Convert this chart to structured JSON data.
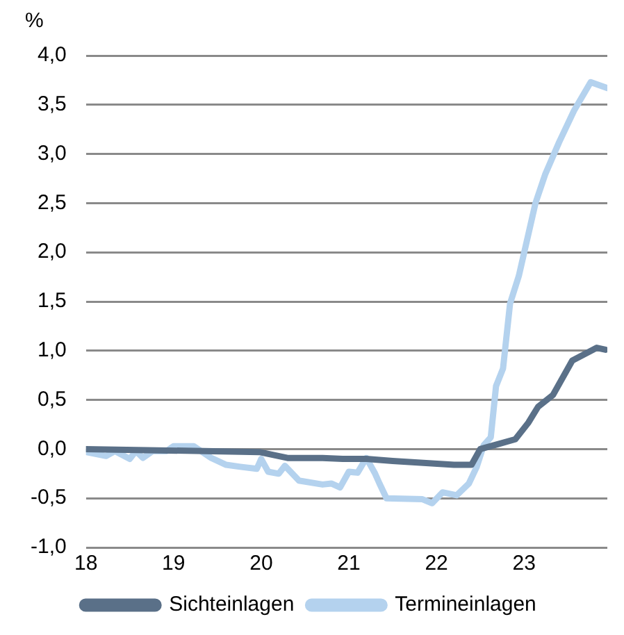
{
  "chart_data": {
    "type": "line",
    "ylabel": "%",
    "xlim": [
      18,
      23.95
    ],
    "xticks": [
      18,
      19,
      20,
      21,
      22,
      23
    ],
    "ylim": [
      -1,
      4
    ],
    "yticks": [
      {
        "value": -1,
        "label": "-1,0"
      },
      {
        "value": -0.5,
        "label": "-0,5"
      },
      {
        "value": 0,
        "label": "0,0"
      },
      {
        "value": 0.5,
        "label": "0,5"
      },
      {
        "value": 1,
        "label": "1,0"
      },
      {
        "value": 1.5,
        "label": "1,5"
      },
      {
        "value": 2,
        "label": "2,0"
      },
      {
        "value": 2.5,
        "label": "2,5"
      },
      {
        "value": 3,
        "label": "3,0"
      },
      {
        "value": 3.5,
        "label": "3,5"
      },
      {
        "value": 4,
        "label": "4,0"
      }
    ],
    "grid": "y",
    "legend": "bottom",
    "marker": "none",
    "line_style": "solid",
    "series": [
      {
        "name": "Sichteinlagen",
        "color": "#5a7088",
        "x": [
          18,
          19.98,
          20.3,
          20.7,
          20.93,
          21.2,
          21.5,
          22.2,
          22.4,
          22.5,
          22.7,
          22.9,
          23.05,
          23.16,
          23.33,
          23.55,
          23.83,
          23.93
        ],
        "values": [
          0,
          -0.03,
          -0.09,
          -0.09,
          -0.1,
          -0.1,
          -0.12,
          -0.16,
          -0.16,
          0,
          0.05,
          0.1,
          0.27,
          0.43,
          0.55,
          0.9,
          1.03,
          1.01
        ]
      },
      {
        "name": "Termineinlagen",
        "color": "#b4d2ee",
        "x": [
          18,
          18.23,
          18.33,
          18.5,
          18.57,
          18.65,
          18.76,
          18.92,
          19,
          19.23,
          19.33,
          19.43,
          19.6,
          19.76,
          19.95,
          20,
          20.08,
          20.2,
          20.27,
          20.43,
          20.7,
          20.8,
          20.9,
          21,
          21.1,
          21.2,
          21.3,
          21.35,
          21.43,
          21.84,
          21.95,
          22.07,
          22.23,
          22.37,
          22.46,
          22.54,
          22.62,
          22.68,
          22.76,
          22.84,
          22.94,
          23.13,
          23.24,
          23.4,
          23.57,
          23.76,
          23.95
        ],
        "values": [
          -0.03,
          -0.07,
          -0.02,
          -0.1,
          -0.02,
          -0.09,
          -0.02,
          -0.02,
          0.03,
          0.03,
          -0.03,
          -0.09,
          -0.16,
          -0.18,
          -0.2,
          -0.1,
          -0.23,
          -0.25,
          -0.17,
          -0.32,
          -0.36,
          -0.35,
          -0.39,
          -0.23,
          -0.24,
          -0.09,
          -0.25,
          -0.35,
          -0.5,
          -0.51,
          -0.55,
          -0.44,
          -0.47,
          -0.35,
          -0.18,
          0.04,
          0.12,
          0.64,
          0.82,
          1.48,
          1.76,
          2.5,
          2.79,
          3.12,
          3.44,
          3.73,
          3.67
        ]
      }
    ]
  }
}
